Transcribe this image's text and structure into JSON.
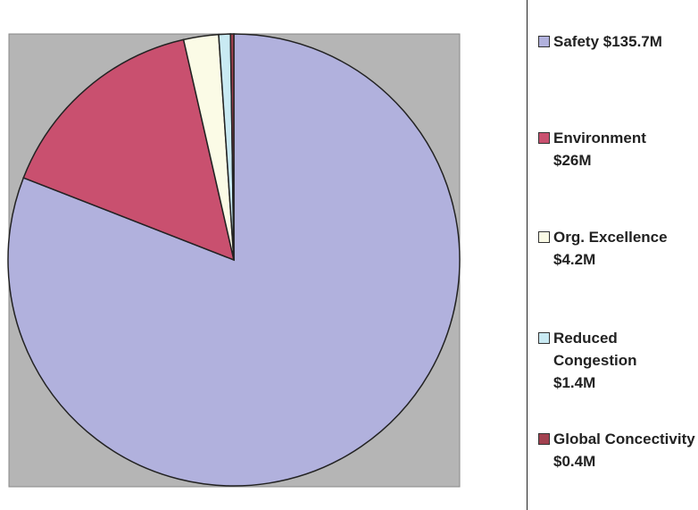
{
  "chart_data": {
    "type": "pie",
    "categories": [
      "Safety",
      "Environment",
      "Org. Excellence",
      "Reduced Congestion",
      "Global Concectivity"
    ],
    "values": [
      135.7,
      26,
      4.2,
      1.4,
      0.4
    ],
    "value_labels": [
      "$135.7M",
      "$26M",
      "$4.2M",
      "$1.4M",
      "$0.4M"
    ],
    "colors": [
      "#b1b1dd",
      "#c9506f",
      "#fbfbe6",
      "#c9eaf3",
      "#a2414f"
    ],
    "start_angle": 0,
    "direction": "clockwise",
    "legend": "right"
  }
}
